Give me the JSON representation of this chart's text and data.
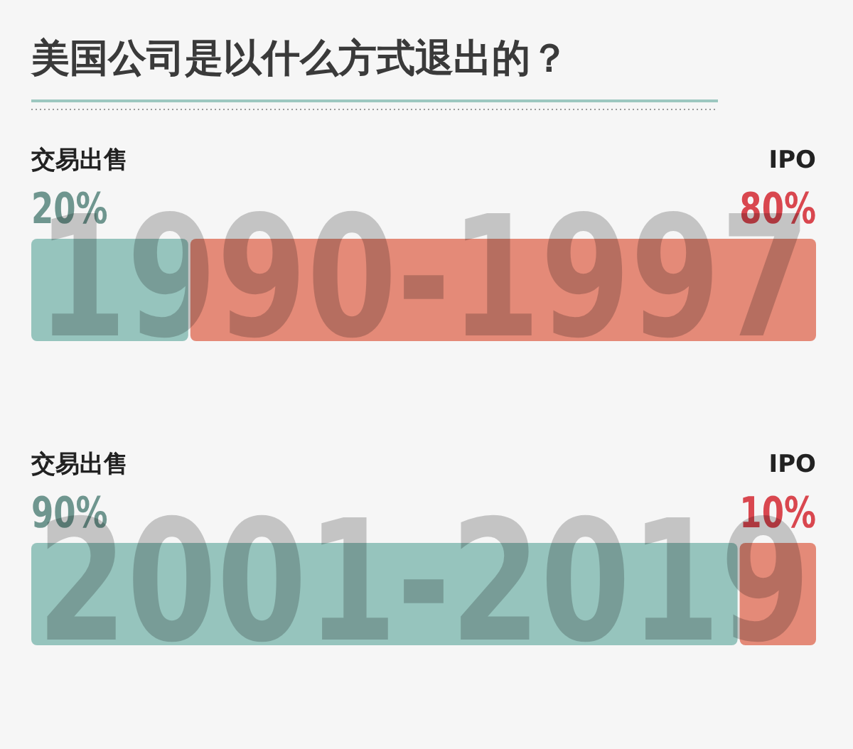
{
  "chart_data": {
    "type": "bar",
    "orientation": "horizontal",
    "stacked": true,
    "title": "美国公司是以什么方式退出的？",
    "categories": [
      "1990-1997",
      "2001-2019"
    ],
    "series": [
      {
        "name": "交易出售",
        "color": "#96c4bd",
        "values": [
          20,
          90
        ],
        "value_labels": [
          "20%",
          "90%"
        ]
      },
      {
        "name": "IPO",
        "color": "#e48a78",
        "values": [
          80,
          10
        ],
        "value_labels": [
          "80%",
          "10%"
        ]
      }
    ],
    "xlim": [
      0,
      100
    ],
    "tick_labels": "y",
    "grid": false
  }
}
